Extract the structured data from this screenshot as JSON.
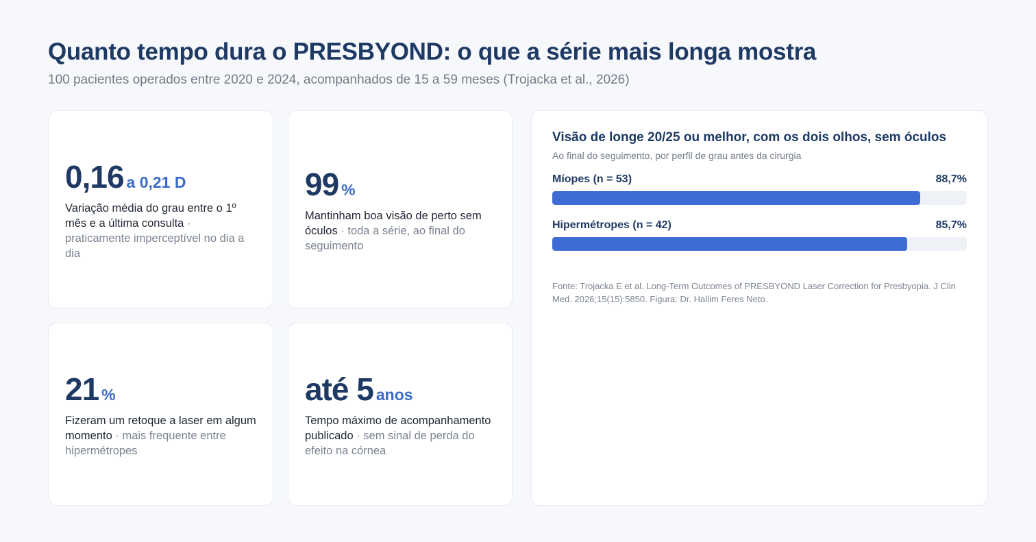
{
  "header": {
    "title": "Quanto tempo dura o PRESBYOND: o que a série mais longa mostra",
    "subtitle": "100 pacientes operados entre 2020 e 2024, acompanhados de 15 a 59 meses (Trojacka et al., 2026)"
  },
  "stats": [
    {
      "value": "0,16",
      "unit": "a 0,21 D",
      "description": "Variação média do grau entre o 1º mês e a última consulta",
      "note": " · praticamente imperceptível no dia a dia"
    },
    {
      "value": "99",
      "unit": "%",
      "description": "Mantinham boa visão de perto sem óculos",
      "note": " · toda a série, ao final do seguimento"
    },
    {
      "value": "21",
      "unit": "%",
      "description": "Fizeram um retoque a laser em algum momento",
      "note": " · mais frequente entre hipermétropes"
    },
    {
      "value": "até 5",
      "unit": "anos",
      "description": "Tempo máximo de acompanhamento publicado",
      "note": " · sem sinal de perda do efeito na córnea"
    }
  ],
  "chart_data": {
    "type": "bar",
    "orientation": "horizontal",
    "title": "Visão de longe 20/25 ou melhor, com os dois olhos, sem óculos",
    "subtitle": "Ao final do seguimento, por perfil de grau antes da cirurgia",
    "categories": [
      "Míopes (n = 53)",
      "Hipermétropes (n = 42)"
    ],
    "values": [
      88.7,
      85.7
    ],
    "value_labels": [
      "88,7%",
      "85,7%"
    ],
    "xlim": [
      0,
      100
    ],
    "grid": false,
    "bar_color": "#3f6cd4",
    "source": "Fonte: Trojacka E et al. Long-Term Outcomes of PRESBYOND Laser Correction for Presbyopia. J Clin Med. 2026;15(15):5850. Figura: Dr. Hallim Feres Neto."
  },
  "colors": {
    "background": "#f6f8fb",
    "navy": "#1e3a64",
    "accent": "#3a6bc9",
    "muted": "#737b87"
  }
}
